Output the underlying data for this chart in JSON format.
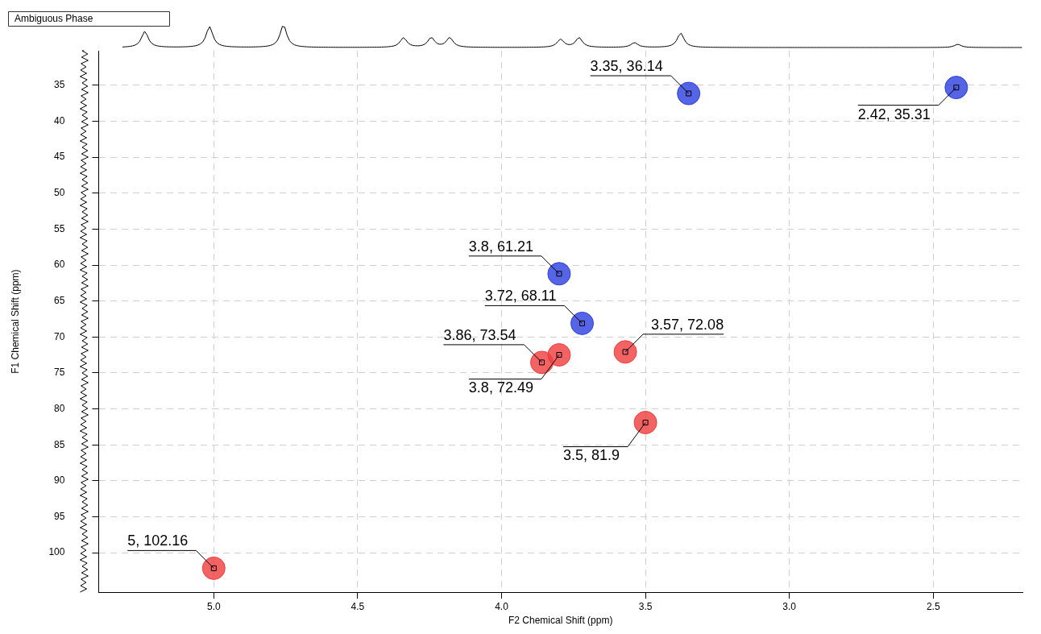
{
  "chart_data": {
    "type": "scatter",
    "xlabel": "F2 Chemical Shift (ppm)",
    "ylabel": "F1 Chemical Shift (ppm)",
    "annotations": [
      "Ambiguous Phase"
    ],
    "xlim": [
      5.4,
      2.19
    ],
    "ylim": [
      105.5,
      30.2
    ],
    "xticks": [
      {
        "value": 5,
        "label": "5.0"
      },
      4.5,
      {
        "value": 4,
        "label": "4.0"
      },
      3.5,
      {
        "value": 3,
        "label": "3.0"
      },
      2.5
    ],
    "yticks": [
      35,
      40,
      45,
      50,
      55,
      60,
      65,
      70,
      75,
      80,
      85,
      90,
      95,
      100
    ],
    "grid": true,
    "legend": false,
    "marker": "circle",
    "series": [
      {
        "color": "#f03c3c",
        "x": [
          5,
          3.86,
          3.8,
          3.57,
          3.5
        ],
        "values": [
          102.16,
          73.54,
          72.49,
          72.08,
          81.9
        ],
        "value_labels": [
          "5, 102.16",
          "3.86, 73.54",
          "3.8, 72.49",
          "3.57, 72.08",
          "3.5, 81.9"
        ]
      },
      {
        "color": "#2a3fe0",
        "x": [
          3.35,
          2.42,
          3.8,
          3.72
        ],
        "values": [
          36.14,
          35.31,
          61.21,
          68.11
        ],
        "value_labels": [
          "3.35, 36.14",
          "2.42, 35.31",
          "3.8, 61.21",
          "3.72, 68.11"
        ]
      }
    ]
  }
}
